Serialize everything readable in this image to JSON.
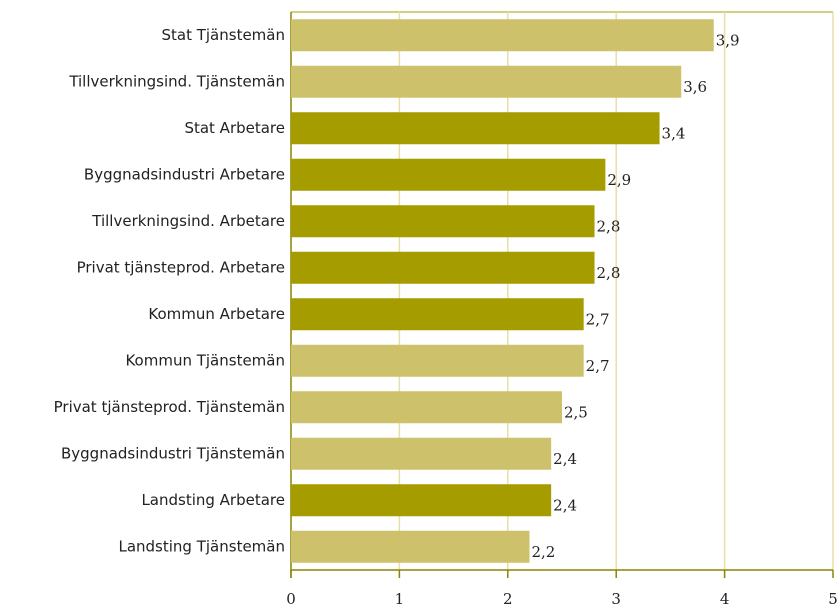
{
  "chart_data": {
    "type": "barh",
    "categories": [
      "Stat Tjänstemän",
      "Tillverkningsind. Tjänstemän",
      "Stat Arbetare",
      "Byggnadsindustri Arbetare",
      "Tillverkningsind. Arbetare",
      "Privat tjänsteprod. Arbetare",
      "Kommun Arbetare",
      "Kommun Tjänstemän",
      "Privat tjänsteprod. Tjänstemän",
      "Byggnadsindustri Tjänstemän",
      "Landsting Arbetare",
      "Landsting Tjänstemän"
    ],
    "values": [
      3.9,
      3.6,
      3.4,
      2.9,
      2.8,
      2.8,
      2.7,
      2.7,
      2.5,
      2.4,
      2.4,
      2.2
    ],
    "value_labels": [
      "3,9",
      "3,6",
      "3,4",
      "2,9",
      "2,8",
      "2,8",
      "2,7",
      "2,7",
      "2,5",
      "2,4",
      "2,4",
      "2,2"
    ],
    "colors": [
      "#cdc26b",
      "#cdc26b",
      "#a59c00",
      "#a59c00",
      "#a59c00",
      "#a59c00",
      "#a59c00",
      "#cdc26b",
      "#cdc26b",
      "#cdc26b",
      "#a59c00",
      "#cdc26b"
    ],
    "xlim": [
      0,
      5
    ],
    "xticks": [
      0,
      1,
      2,
      3,
      4,
      5
    ],
    "grid": true
  }
}
